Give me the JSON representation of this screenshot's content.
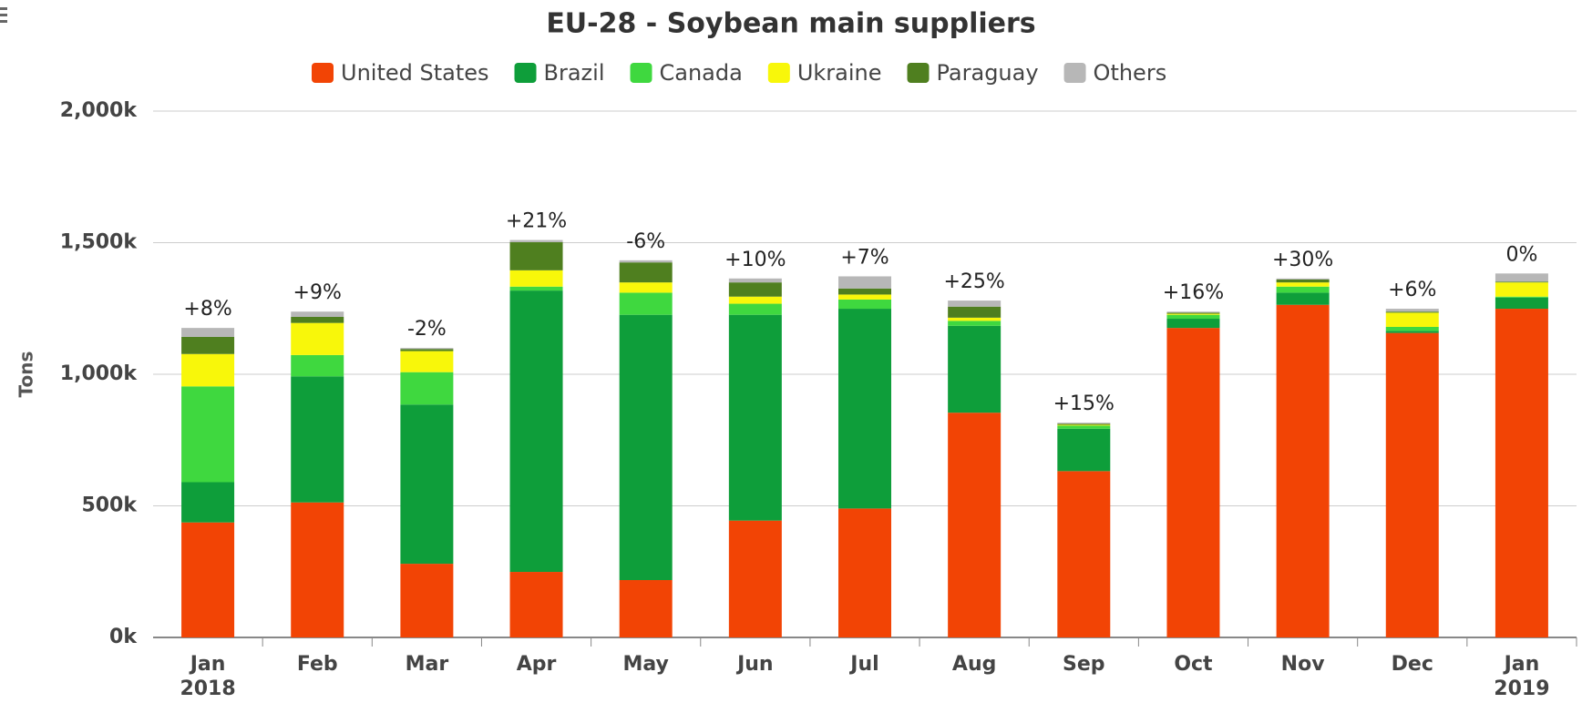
{
  "chart_data": {
    "type": "stacked_bar",
    "title": "EU-28 - Soybean main suppliers",
    "y_label": "Tons",
    "categories": [
      "Jan 2018",
      "Feb",
      "Mar",
      "Apr",
      "May",
      "Jun",
      "Jul",
      "Aug",
      "Sep",
      "Oct",
      "Nov",
      "Dec",
      "Jan 2019"
    ],
    "series": [
      {
        "name": "United States",
        "color": "#f24405",
        "values": [
          437000,
          513000,
          280000,
          249000,
          218000,
          444000,
          490000,
          854000,
          632000,
          1176000,
          1264000,
          1157000,
          1249000
        ]
      },
      {
        "name": "Brazil",
        "color": "#0e9e3a",
        "values": [
          153000,
          479000,
          605000,
          1069000,
          1008000,
          782000,
          759000,
          330000,
          161000,
          35000,
          46000,
          8000,
          42000
        ]
      },
      {
        "name": "Canada",
        "color": "#3fd83f",
        "values": [
          364000,
          81000,
          123000,
          15000,
          84000,
          42000,
          35000,
          19000,
          12000,
          15000,
          23000,
          15000,
          4000
        ]
      },
      {
        "name": "Ukraine",
        "color": "#f8f70a",
        "values": [
          123000,
          122000,
          80000,
          62000,
          39000,
          27000,
          19000,
          12000,
          3000,
          4000,
          16000,
          54000,
          54000
        ]
      },
      {
        "name": "Paraguay",
        "color": "#4f7f1f",
        "values": [
          65000,
          23000,
          8000,
          107000,
          76000,
          54000,
          23000,
          42000,
          4000,
          4000,
          11000,
          4000,
          3000
        ]
      },
      {
        "name": "Others",
        "color": "#b7b7b7",
        "values": [
          34000,
          20000,
          4000,
          8000,
          8000,
          15000,
          46000,
          23000,
          4000,
          4000,
          4000,
          11000,
          31000
        ]
      }
    ],
    "annotations": [
      "+8%",
      "+9%",
      "-2%",
      "+21%",
      "-6%",
      "+10%",
      "+7%",
      "+25%",
      "+15%",
      "+16%",
      "+30%",
      "+6%",
      "0%"
    ],
    "ylim": [
      0,
      2000000
    ],
    "yticks": [
      {
        "value": 0,
        "label": "0k"
      },
      {
        "value": 500000,
        "label": "500k"
      },
      {
        "value": 1000000,
        "label": "1,000k"
      },
      {
        "value": 1500000,
        "label": "1,500k"
      },
      {
        "value": 2000000,
        "label": "2,000k"
      }
    ],
    "grid": true,
    "legend": "top"
  }
}
